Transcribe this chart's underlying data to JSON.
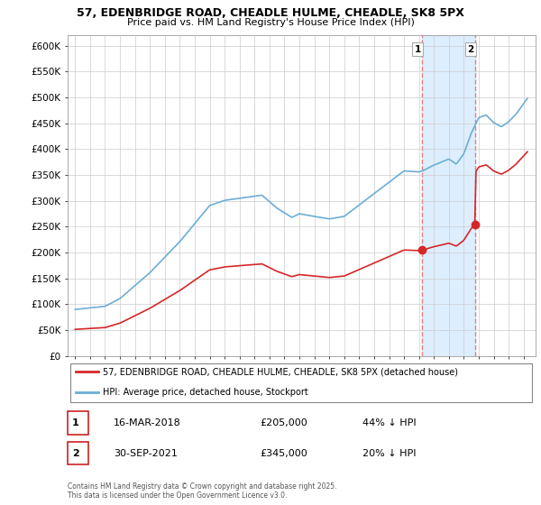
{
  "title_line1": "57, EDENBRIDGE ROAD, CHEADLE HULME, CHEADLE, SK8 5PX",
  "title_line2": "Price paid vs. HM Land Registry's House Price Index (HPI)",
  "ylim": [
    0,
    620000
  ],
  "yticks": [
    0,
    50000,
    100000,
    150000,
    200000,
    250000,
    300000,
    350000,
    400000,
    450000,
    500000,
    550000,
    600000
  ],
  "ytick_labels": [
    "£0",
    "£50K",
    "£100K",
    "£150K",
    "£200K",
    "£250K",
    "£300K",
    "£350K",
    "£400K",
    "£450K",
    "£500K",
    "£550K",
    "£600K"
  ],
  "hpi_color": "#6baed6",
  "price_color": "#d62728",
  "vline_color": "#e08080",
  "shade_color": "#ddeeff",
  "annotation1_label": "1",
  "annotation2_label": "2",
  "legend_line1": "57, EDENBRIDGE ROAD, CHEADLE HULME, CHEADLE, SK8 5PX (detached house)",
  "legend_line2": "HPI: Average price, detached house, Stockport",
  "note1_label": "1",
  "note1_date": "16-MAR-2018",
  "note1_price": "£205,000",
  "note1_hpi": "44% ↓ HPI",
  "note2_label": "2",
  "note2_date": "30-SEP-2021",
  "note2_price": "£345,000",
  "note2_hpi": "20% ↓ HPI",
  "footer": "Contains HM Land Registry data © Crown copyright and database right 2025.\nThis data is licensed under the Open Government Licence v3.0.",
  "vline1_x": 2018.21,
  "vline2_x": 2021.75,
  "purchase1_price": 205000,
  "purchase2_price": 345000,
  "hpi_at_2018": 358000,
  "hpi_at_2021": 435000,
  "xlim_left": 1994.5,
  "xlim_right": 2025.8
}
